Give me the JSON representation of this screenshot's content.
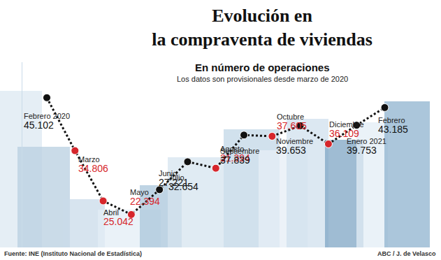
{
  "chart_data": {
    "type": "line",
    "title": "Evolución en\nla compraventa de viviendas",
    "subtitle": "En número de operaciones",
    "annotations": [
      "Los datos son provisionales desde marzo de 2020"
    ],
    "source": "Fuente: INE (Instituto Nacional de Estadística)",
    "credit": "ABC / J. de Velasco",
    "categories": [
      "Febrero 2020",
      "Marzo",
      "Abril",
      "Mayo",
      "Junio",
      "Julio",
      "Agosto",
      "Septiembre",
      "Octubre",
      "Noviembre",
      "Diciembre",
      "Enero 2021",
      "Febrero"
    ],
    "values": [
      45102,
      34806,
      25042,
      22394,
      27221,
      32654,
      31394,
      37839,
      37605,
      39653,
      36109,
      39753,
      43185
    ],
    "value_labels": [
      "45.102",
      "34.806",
      "25.042",
      "22.394",
      "27.221",
      "32.654",
      "31.394",
      "37.839",
      "37.605",
      "39.653",
      "36.109",
      "39.753",
      "43.185"
    ],
    "color": "#111111",
    "colors": [
      "#111111",
      "#d6262c",
      "#d6262c",
      "#d6262c",
      "#111111",
      "#111111",
      "#d6262c",
      "#111111",
      "#d6262c",
      "#111111",
      "#d6262c",
      "#111111",
      "#111111"
    ],
    "line_style": "dot",
    "marker": "circle",
    "data_labels": true,
    "tick_labels": false,
    "grid": false,
    "ylim": [
      16000,
      52000
    ]
  }
}
